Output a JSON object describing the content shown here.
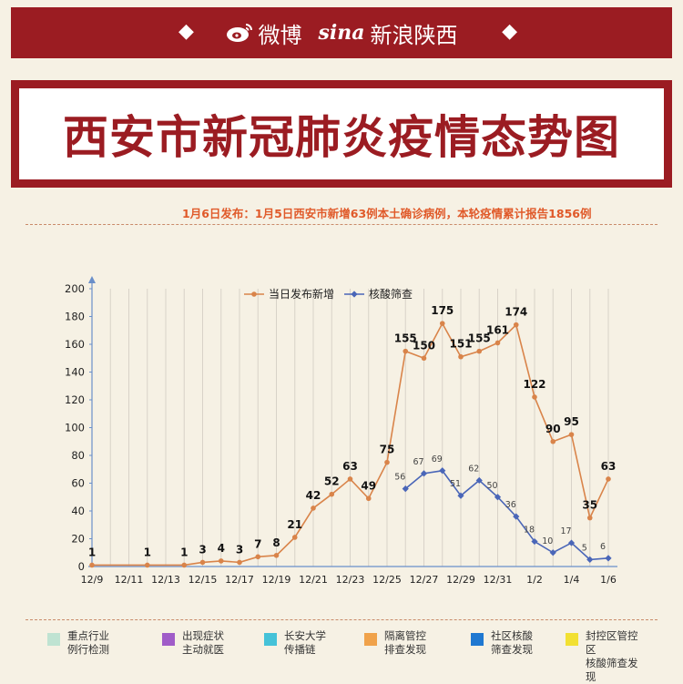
{
  "header": {
    "weibo_label": "微博",
    "sina_logo": "sina",
    "sina_label": "新浪陕西"
  },
  "title": "西安市新冠肺炎疫情态势图",
  "subtitle": "1月6日发布：1月5日西安市新增63例本土确诊病例，本轮疫情累计报告1856例",
  "colors": {
    "brand_red": "#9b1c22",
    "line_new": "#d9844a",
    "line_test": "#4a66b8",
    "background": "#f6f1e4"
  },
  "chart_data": {
    "type": "line",
    "x": [
      "12/9",
      "12/10",
      "12/11",
      "12/12",
      "12/13",
      "12/14",
      "12/15",
      "12/16",
      "12/17",
      "12/18",
      "12/19",
      "12/20",
      "12/21",
      "12/22",
      "12/23",
      "12/24",
      "12/25",
      "12/26",
      "12/27",
      "12/28",
      "12/29",
      "12/30",
      "12/31",
      "1/1",
      "1/2",
      "1/3",
      "1/4",
      "1/5",
      "1/6"
    ],
    "x_tick_labels": [
      "12/9",
      "12/11",
      "12/13",
      "12/15",
      "12/17",
      "12/19",
      "12/21",
      "12/23",
      "12/25",
      "12/27",
      "12/29",
      "12/31",
      "1/2",
      "1/4",
      "1/6"
    ],
    "ylim": [
      0,
      200
    ],
    "y_ticks": [
      0,
      20,
      40,
      60,
      80,
      100,
      120,
      140,
      160,
      180,
      200
    ],
    "series": [
      {
        "name": "当日发布新增",
        "color": "#d9844a",
        "values": [
          1,
          null,
          null,
          1,
          null,
          1,
          3,
          4,
          3,
          7,
          8,
          21,
          42,
          52,
          63,
          49,
          75,
          155,
          150,
          175,
          151,
          155,
          161,
          174,
          122,
          90,
          95,
          35,
          63
        ],
        "labels": [
          "1",
          null,
          null,
          "1",
          null,
          "1",
          "3",
          "4",
          "3",
          "7",
          "8",
          "21",
          "42",
          "52",
          "63",
          "49",
          "75",
          "155",
          "150",
          "175",
          "151",
          "155",
          "161",
          "174",
          "122",
          "90",
          "95",
          "35",
          "63"
        ]
      },
      {
        "name": "核酸筛查",
        "color": "#4a66b8",
        "values": [
          null,
          null,
          null,
          null,
          null,
          null,
          null,
          null,
          null,
          null,
          null,
          null,
          null,
          null,
          null,
          null,
          null,
          56,
          67,
          69,
          51,
          62,
          50,
          36,
          18,
          10,
          17,
          5,
          6
        ],
        "labels": [
          null,
          null,
          null,
          null,
          null,
          null,
          null,
          null,
          null,
          null,
          null,
          null,
          null,
          null,
          null,
          null,
          null,
          "56",
          "67",
          "69",
          "51",
          "62",
          "50",
          "36",
          "18",
          "10",
          "17",
          "5",
          "6"
        ]
      }
    ],
    "legend_position": "top-center",
    "grid": "vertical"
  },
  "legend": [
    {
      "line1": "重点行业",
      "line2": "例行检测",
      "color": "#bfe3d2"
    },
    {
      "line1": "出现症状",
      "line2": "主动就医",
      "color": "#a05cc8"
    },
    {
      "line1": "长安大学",
      "line2": "传播链",
      "color": "#45c2d8"
    },
    {
      "line1": "隔离管控",
      "line2": "排查发现",
      "color": "#f0a24a"
    },
    {
      "line1": "社区核酸",
      "line2": "筛查发现",
      "color": "#1f78d1"
    },
    {
      "line1": "封控区管控区",
      "line2": "核酸筛查发现",
      "color": "#f2e032"
    }
  ]
}
